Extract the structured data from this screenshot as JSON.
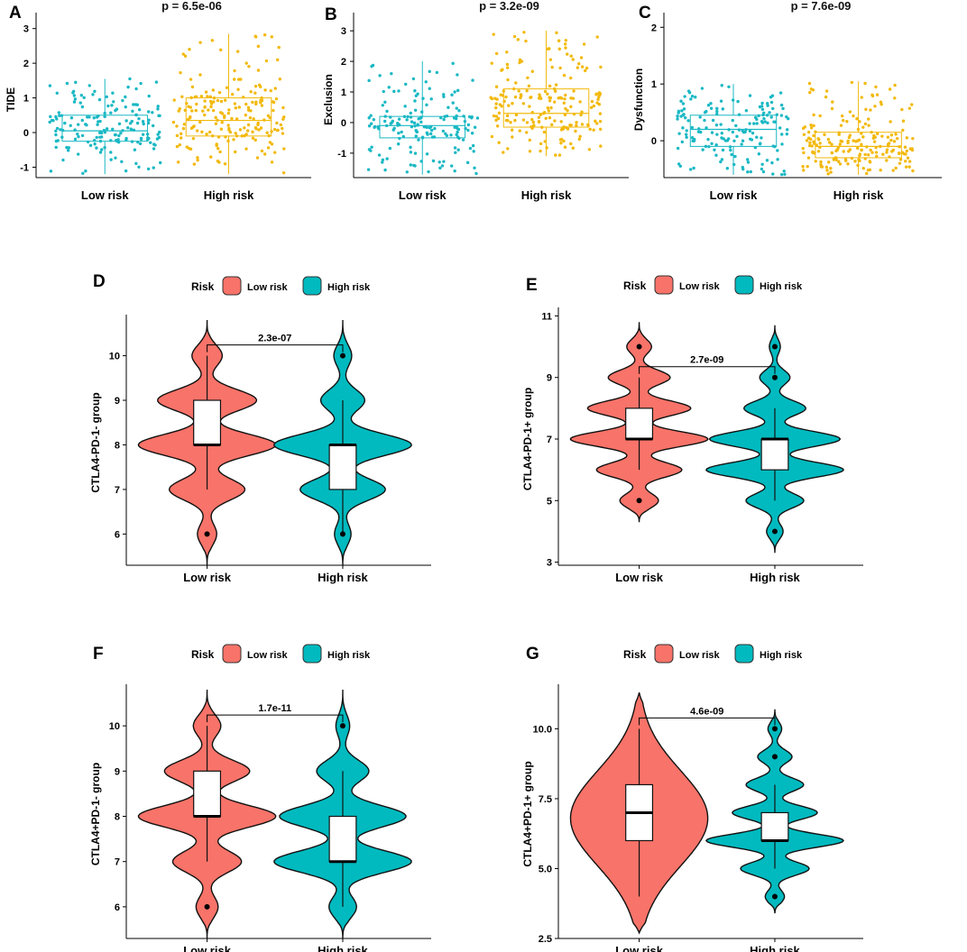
{
  "chart_data": [
    {
      "id": "A",
      "type": "box_jitter",
      "title": "p = 6.5e-06",
      "ylabel": "TIDE",
      "categories": [
        "Low risk",
        "High risk"
      ],
      "ylim": [
        -1.3,
        3.2
      ],
      "yticks": [
        -1,
        0,
        1,
        2,
        3
      ],
      "colors": [
        "#1ab8c4",
        "#f2b90c"
      ],
      "boxes": [
        {
          "min": -1.2,
          "q1": -0.25,
          "median": 0.05,
          "q3": 0.5,
          "max": 1.55
        },
        {
          "min": -1.2,
          "q1": -0.1,
          "median": 0.35,
          "q3": 1.0,
          "max": 2.85
        }
      ],
      "n_points": [
        170,
        200
      ]
    },
    {
      "id": "B",
      "type": "box_jitter",
      "title": "p = 3.2e-09",
      "ylabel": "Exclusion",
      "categories": [
        "Low risk",
        "High risk"
      ],
      "ylim": [
        -1.8,
        3.3
      ],
      "yticks": [
        -1,
        0,
        1,
        2,
        3
      ],
      "colors": [
        "#1ab8c4",
        "#f2b90c"
      ],
      "boxes": [
        {
          "min": -1.7,
          "q1": -0.5,
          "median": -0.1,
          "q3": 0.2,
          "max": 2.0
        },
        {
          "min": -1.1,
          "q1": -0.15,
          "median": 0.3,
          "q3": 1.1,
          "max": 3.0
        }
      ],
      "n_points": [
        170,
        200
      ]
    },
    {
      "id": "C",
      "type": "box_jitter",
      "title": "p = 7.6e-09",
      "ylabel": "Dysfunction",
      "categories": [
        "Low risk",
        "High risk"
      ],
      "ylim": [
        -0.65,
        2.1
      ],
      "yticks": [
        0,
        1,
        2
      ],
      "colors": [
        "#1ab8c4",
        "#f2b90c"
      ],
      "boxes": [
        {
          "min": -0.6,
          "q1": -0.1,
          "median": 0.2,
          "q3": 0.45,
          "max": 1.0
        },
        {
          "min": -0.6,
          "q1": -0.3,
          "median": -0.1,
          "q3": 0.15,
          "max": 1.05
        }
      ],
      "n_points": [
        170,
        200
      ]
    },
    {
      "id": "D",
      "type": "violin",
      "ylabel": "CTLA4-PD-1- group",
      "legend_title": "Risk",
      "legend": [
        "Low risk",
        "High risk"
      ],
      "categories": [
        "Low risk",
        "High risk"
      ],
      "colors": [
        "#f87369",
        "#00babf"
      ],
      "ylim": [
        5.3,
        10.8
      ],
      "yticks": [
        6,
        7,
        8,
        9,
        10
      ],
      "annotation": "2.3e-07",
      "violins": [
        {
          "range": [
            5.3,
            10.8
          ],
          "modes": [
            [
              8,
              1.0
            ],
            [
              9,
              0.72
            ],
            [
              7,
              0.55
            ],
            [
              10,
              0.22
            ],
            [
              6,
              0.14
            ]
          ]
        },
        {
          "range": [
            5.3,
            10.8
          ],
          "modes": [
            [
              8,
              1.0
            ],
            [
              7,
              0.62
            ],
            [
              9,
              0.32
            ],
            [
              10,
              0.13
            ],
            [
              6,
              0.12
            ]
          ]
        }
      ],
      "boxes": [
        {
          "whisker_low": 7,
          "q1": 8,
          "median": 8,
          "q3": 9,
          "whisker_high": 10
        },
        {
          "whisker_low": 6,
          "q1": 7,
          "median": 8,
          "q3": 8,
          "whisker_high": 9
        }
      ],
      "outliers": [
        [
          6
        ],
        [
          10,
          6
        ]
      ]
    },
    {
      "id": "E",
      "type": "violin",
      "ylabel": "CTLA4-PD-1+ group",
      "legend_title": "Risk",
      "legend": [
        "Low risk",
        "High risk"
      ],
      "categories": [
        "Low risk",
        "High risk"
      ],
      "colors": [
        "#f87369",
        "#00babf"
      ],
      "ylim": [
        2.9,
        11.1
      ],
      "yticks": [
        3,
        5,
        7,
        9,
        11
      ],
      "annotation": "2.7e-09",
      "violins": [
        {
          "range": [
            4.3,
            10.8
          ],
          "modes": [
            [
              7,
              1.0
            ],
            [
              8,
              0.75
            ],
            [
              6,
              0.62
            ],
            [
              9,
              0.45
            ],
            [
              5,
              0.28
            ],
            [
              10,
              0.18
            ]
          ]
        },
        {
          "range": [
            3.3,
            10.7
          ],
          "modes": [
            [
              6,
              1.0
            ],
            [
              7,
              0.95
            ],
            [
              8,
              0.45
            ],
            [
              5,
              0.42
            ],
            [
              9,
              0.22
            ],
            [
              4,
              0.12
            ],
            [
              10,
              0.08
            ]
          ]
        }
      ],
      "boxes": [
        {
          "whisker_low": 6,
          "q1": 7,
          "median": 7,
          "q3": 8,
          "whisker_high": 9
        },
        {
          "whisker_low": 5,
          "q1": 6,
          "median": 7,
          "q3": 7,
          "whisker_high": 8
        }
      ],
      "outliers": [
        [
          10,
          5
        ],
        [
          9,
          10,
          4
        ]
      ]
    },
    {
      "id": "F",
      "type": "violin",
      "ylabel": "CTLA4+PD-1- group",
      "legend_title": "Risk",
      "legend": [
        "Low risk",
        "High risk"
      ],
      "categories": [
        "Low risk",
        "High risk"
      ],
      "colors": [
        "#f87369",
        "#00babf"
      ],
      "ylim": [
        5.3,
        10.8
      ],
      "yticks": [
        6,
        7,
        8,
        9,
        10
      ],
      "annotation": "1.7e-11",
      "violins": [
        {
          "range": [
            5.3,
            10.8
          ],
          "modes": [
            [
              8,
              1.0
            ],
            [
              9,
              0.62
            ],
            [
              7,
              0.5
            ],
            [
              10,
              0.2
            ],
            [
              6,
              0.16
            ]
          ]
        },
        {
          "range": [
            5.3,
            10.8
          ],
          "modes": [
            [
              7,
              1.0
            ],
            [
              8,
              0.92
            ],
            [
              9,
              0.38
            ],
            [
              6,
              0.2
            ],
            [
              10,
              0.1
            ]
          ]
        }
      ],
      "boxes": [
        {
          "whisker_low": 7,
          "q1": 8,
          "median": 8,
          "q3": 9,
          "whisker_high": 10
        },
        {
          "whisker_low": 6,
          "q1": 7,
          "median": 7,
          "q3": 8,
          "whisker_high": 9
        }
      ],
      "outliers": [
        [
          6
        ],
        [
          10
        ]
      ]
    },
    {
      "id": "G",
      "type": "violin",
      "ylabel": "CTLA4+PD-1+ group",
      "legend_title": "Risk",
      "legend": [
        "Low risk",
        "High risk"
      ],
      "categories": [
        "Low risk",
        "High risk"
      ],
      "colors": [
        "#f87369",
        "#00babf"
      ],
      "ylim": [
        2.5,
        11.4
      ],
      "yticks": [
        2.5,
        5.0,
        7.5,
        10.0
      ],
      "yformat": 1,
      "annotation": "4.6e-09",
      "violins": [
        {
          "range": [
            2.7,
            11.3
          ],
          "smooth": true,
          "modes": [
            [
              6.8,
              1.0
            ]
          ]
        },
        {
          "range": [
            3.4,
            10.7
          ],
          "modes": [
            [
              6,
              1.0
            ],
            [
              7,
              0.62
            ],
            [
              5,
              0.5
            ],
            [
              8,
              0.42
            ],
            [
              9,
              0.25
            ],
            [
              4,
              0.14
            ],
            [
              10,
              0.1
            ]
          ]
        }
      ],
      "boxes": [
        {
          "whisker_low": 4,
          "q1": 6,
          "median": 7,
          "q3": 8,
          "whisker_high": 10
        },
        {
          "whisker_low": 5,
          "q1": 6,
          "median": 6,
          "q3": 7,
          "whisker_high": 8
        }
      ],
      "outliers": [
        [],
        [
          9,
          10,
          4
        ]
      ]
    }
  ]
}
